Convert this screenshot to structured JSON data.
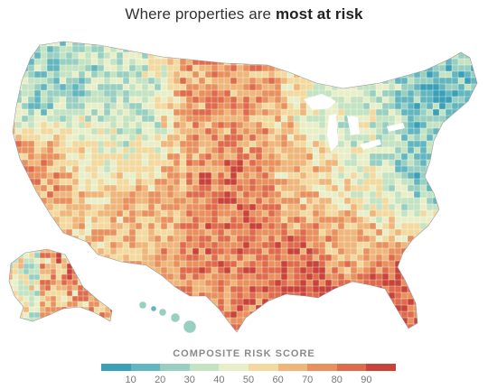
{
  "title": {
    "prefix": "Where properties are ",
    "emphasis": "most at risk"
  },
  "legend": {
    "title": "COMPOSITE RISK SCORE",
    "min": 0,
    "max": 100,
    "ticks": [
      10,
      20,
      30,
      40,
      50,
      60,
      70,
      80,
      90
    ],
    "colors": [
      "#3a9fb7",
      "#63b6bf",
      "#99cfc1",
      "#c4e3c3",
      "#e8efc8",
      "#f3d9a0",
      "#efb67b",
      "#e8915f",
      "#de6b4c",
      "#c8433a"
    ]
  },
  "map": {
    "subject": "Contiguous United States, Alaska and Hawaii counties colored by composite risk score",
    "regions": [
      {
        "name": "pacific-northwest",
        "score": 28
      },
      {
        "name": "california-coast",
        "score": 72
      },
      {
        "name": "great-basin",
        "score": 48
      },
      {
        "name": "southwest",
        "score": 64
      },
      {
        "name": "northern-rockies",
        "score": 36
      },
      {
        "name": "northern-plains",
        "score": 74
      },
      {
        "name": "central-plains",
        "score": 82
      },
      {
        "name": "texas",
        "score": 78
      },
      {
        "name": "gulf-coast",
        "score": 88
      },
      {
        "name": "florida",
        "score": 90
      },
      {
        "name": "midwest",
        "score": 62
      },
      {
        "name": "great-lakes",
        "score": 40
      },
      {
        "name": "southeast",
        "score": 66
      },
      {
        "name": "appalachia",
        "score": 44
      },
      {
        "name": "mid-atlantic",
        "score": 22
      },
      {
        "name": "new-england",
        "score": 18
      },
      {
        "name": "alaska",
        "score": 70
      },
      {
        "name": "hawaii",
        "score": 22
      }
    ]
  }
}
